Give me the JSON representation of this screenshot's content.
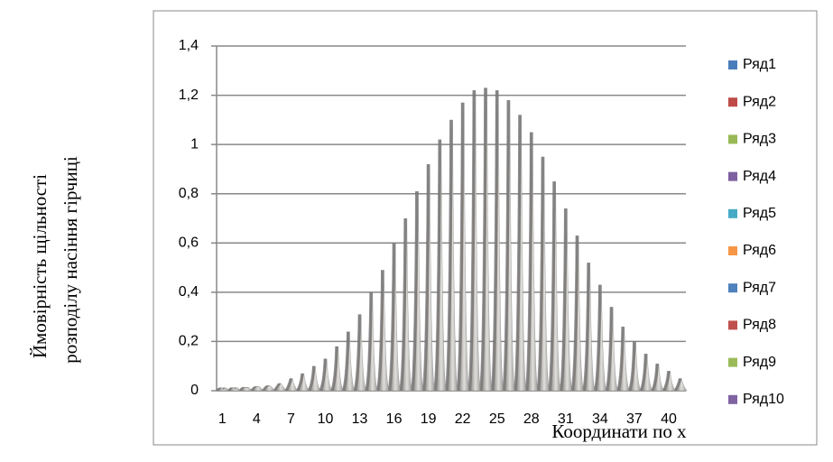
{
  "chart_data": {
    "type": "spike",
    "y_label_line1": "Ймовірність щільності",
    "y_label_line2": "розподілу  насіння гірчиці",
    "x_label": "Координати  по х",
    "categories": [
      1,
      null,
      null,
      4,
      null,
      null,
      7,
      null,
      null,
      10,
      null,
      null,
      13,
      null,
      null,
      16,
      null,
      null,
      19,
      null,
      null,
      22,
      null,
      null,
      25,
      null,
      null,
      28,
      null,
      null,
      31,
      null,
      null,
      34,
      null,
      null,
      37,
      null,
      null,
      40,
      null
    ],
    "ylim": [
      0,
      1.4
    ],
    "yticks": [
      0,
      {
        "value": 0.2,
        "label": "0,2"
      },
      {
        "value": 0.4,
        "label": "0,4"
      },
      {
        "value": 0.6,
        "label": "0,6"
      },
      {
        "value": 0.8,
        "label": "0,8"
      },
      1,
      {
        "value": 1.2,
        "label": "1,2"
      },
      {
        "value": 1.4,
        "label": "1,4"
      }
    ],
    "grid": true,
    "legend": "right",
    "series": [
      {
        "name": "Ряд1",
        "color": "#4a7ebb",
        "values": [
          0.003,
          0.005,
          0.01,
          0.015,
          0.02,
          0.03,
          0.05,
          0.07,
          0.1,
          0.13,
          0.18,
          0.24,
          0.31,
          0.4,
          0.49,
          0.6,
          0.7,
          0.81,
          0.92,
          1.02,
          1.1,
          1.17,
          1.22,
          1.23,
          1.22,
          1.18,
          1.12,
          1.05,
          0.95,
          0.85,
          0.74,
          0.63,
          0.52,
          0.43,
          0.34,
          0.26,
          0.2,
          0.15,
          0.11,
          0.08,
          0.05
        ]
      },
      {
        "name": "Ряд2",
        "color": "#be4b48",
        "values": [
          0.003,
          0.005,
          0.01,
          0.015,
          0.02,
          0.03,
          0.05,
          0.07,
          0.1,
          0.13,
          0.18,
          0.24,
          0.31,
          0.4,
          0.49,
          0.6,
          0.7,
          0.81,
          0.92,
          1.02,
          1.1,
          1.17,
          1.22,
          1.23,
          1.22,
          1.18,
          1.12,
          1.05,
          0.95,
          0.85,
          0.74,
          0.63,
          0.52,
          0.43,
          0.34,
          0.26,
          0.2,
          0.15,
          0.11,
          0.08,
          0.05
        ]
      },
      {
        "name": "Ряд3",
        "color": "#98b954",
        "values": [
          0.003,
          0.005,
          0.01,
          0.015,
          0.02,
          0.03,
          0.05,
          0.07,
          0.1,
          0.13,
          0.18,
          0.24,
          0.31,
          0.4,
          0.49,
          0.6,
          0.7,
          0.81,
          0.92,
          1.02,
          1.1,
          1.17,
          1.22,
          1.23,
          1.22,
          1.18,
          1.12,
          1.05,
          0.95,
          0.85,
          0.74,
          0.63,
          0.52,
          0.43,
          0.34,
          0.26,
          0.2,
          0.15,
          0.11,
          0.08,
          0.05
        ]
      },
      {
        "name": "Ряд4",
        "color": "#7d60a0",
        "values": [
          0.003,
          0.005,
          0.01,
          0.015,
          0.02,
          0.03,
          0.05,
          0.07,
          0.1,
          0.13,
          0.18,
          0.24,
          0.31,
          0.4,
          0.49,
          0.6,
          0.7,
          0.81,
          0.92,
          1.02,
          1.1,
          1.17,
          1.22,
          1.23,
          1.22,
          1.18,
          1.12,
          1.05,
          0.95,
          0.85,
          0.74,
          0.63,
          0.52,
          0.43,
          0.34,
          0.26,
          0.2,
          0.15,
          0.11,
          0.08,
          0.05
        ]
      },
      {
        "name": "Ряд5",
        "color": "#46aac5",
        "values": [
          0.003,
          0.005,
          0.01,
          0.015,
          0.02,
          0.03,
          0.05,
          0.07,
          0.1,
          0.13,
          0.18,
          0.24,
          0.31,
          0.4,
          0.49,
          0.6,
          0.7,
          0.81,
          0.92,
          1.02,
          1.1,
          1.17,
          1.22,
          1.23,
          1.22,
          1.18,
          1.12,
          1.05,
          0.95,
          0.85,
          0.74,
          0.63,
          0.52,
          0.43,
          0.34,
          0.26,
          0.2,
          0.15,
          0.11,
          0.08,
          0.05
        ]
      },
      {
        "name": "Ряд6",
        "color": "#f79646",
        "values": [
          0.003,
          0.005,
          0.01,
          0.015,
          0.02,
          0.03,
          0.05,
          0.07,
          0.1,
          0.13,
          0.18,
          0.24,
          0.31,
          0.4,
          0.49,
          0.6,
          0.7,
          0.81,
          0.92,
          1.02,
          1.1,
          1.17,
          1.22,
          1.23,
          1.22,
          1.18,
          1.12,
          1.05,
          0.95,
          0.85,
          0.74,
          0.63,
          0.52,
          0.43,
          0.34,
          0.26,
          0.2,
          0.15,
          0.11,
          0.08,
          0.05
        ]
      },
      {
        "name": "Ряд7",
        "color": "#4f81bd",
        "values": [
          0.003,
          0.005,
          0.01,
          0.015,
          0.02,
          0.03,
          0.05,
          0.07,
          0.1,
          0.13,
          0.18,
          0.24,
          0.31,
          0.4,
          0.49,
          0.6,
          0.7,
          0.81,
          0.92,
          1.02,
          1.1,
          1.17,
          1.22,
          1.23,
          1.22,
          1.18,
          1.12,
          1.05,
          0.95,
          0.85,
          0.74,
          0.63,
          0.52,
          0.43,
          0.34,
          0.26,
          0.2,
          0.15,
          0.11,
          0.08,
          0.05
        ]
      },
      {
        "name": "Ряд8",
        "color": "#c0504d",
        "values": [
          0.003,
          0.005,
          0.01,
          0.015,
          0.02,
          0.03,
          0.05,
          0.07,
          0.1,
          0.13,
          0.18,
          0.24,
          0.31,
          0.4,
          0.49,
          0.6,
          0.7,
          0.81,
          0.92,
          1.02,
          1.1,
          1.17,
          1.22,
          1.23,
          1.22,
          1.18,
          1.12,
          1.05,
          0.95,
          0.85,
          0.74,
          0.63,
          0.52,
          0.43,
          0.34,
          0.26,
          0.2,
          0.15,
          0.11,
          0.08,
          0.05
        ]
      },
      {
        "name": "Ряд9",
        "color": "#9bbb59",
        "values": [
          0.003,
          0.005,
          0.01,
          0.015,
          0.02,
          0.03,
          0.05,
          0.07,
          0.1,
          0.13,
          0.18,
          0.24,
          0.31,
          0.4,
          0.49,
          0.6,
          0.7,
          0.81,
          0.92,
          1.02,
          1.1,
          1.17,
          1.22,
          1.23,
          1.22,
          1.18,
          1.12,
          1.05,
          0.95,
          0.85,
          0.74,
          0.63,
          0.52,
          0.43,
          0.34,
          0.26,
          0.2,
          0.15,
          0.11,
          0.08,
          0.05
        ]
      },
      {
        "name": "Ряд10",
        "color": "#8064a2",
        "values": [
          0.003,
          0.005,
          0.01,
          0.015,
          0.02,
          0.03,
          0.05,
          0.07,
          0.1,
          0.13,
          0.18,
          0.24,
          0.31,
          0.4,
          0.49,
          0.6,
          0.7,
          0.81,
          0.92,
          1.02,
          1.1,
          1.17,
          1.22,
          1.23,
          1.22,
          1.18,
          1.12,
          1.05,
          0.95,
          0.85,
          0.74,
          0.63,
          0.52,
          0.43,
          0.34,
          0.26,
          0.2,
          0.15,
          0.11,
          0.08,
          0.05
        ]
      }
    ]
  }
}
